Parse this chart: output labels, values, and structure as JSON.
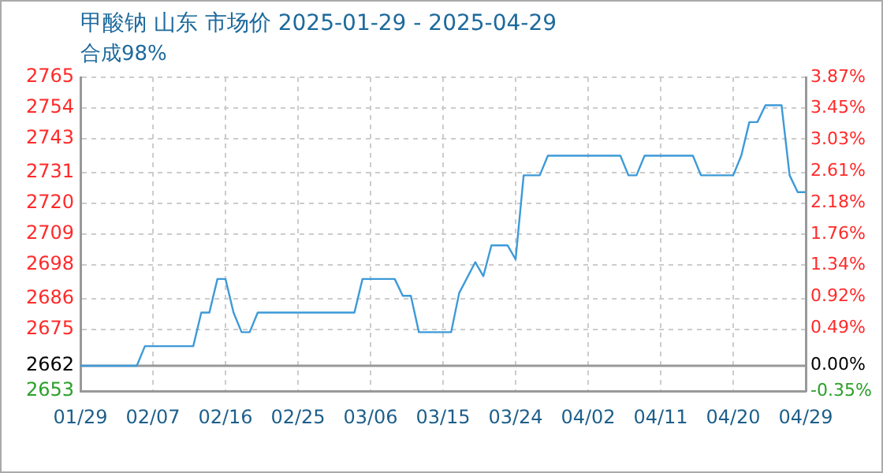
{
  "chart_data": {
    "type": "line",
    "title": "甲酸钠 山东 市场价 2025-01-29 - 2025-04-29",
    "subtitle": "合成98%",
    "x": [
      "2025-01-29",
      "2025-02-05",
      "2025-02-06",
      "2025-02-12",
      "2025-02-13",
      "2025-02-14",
      "2025-02-15",
      "2025-02-16",
      "2025-02-17",
      "2025-02-18",
      "2025-02-19",
      "2025-02-20",
      "2025-03-04",
      "2025-03-05",
      "2025-03-09",
      "2025-03-10",
      "2025-03-11",
      "2025-03-12",
      "2025-03-16",
      "2025-03-17",
      "2025-03-19",
      "2025-03-20",
      "2025-03-21",
      "2025-03-23",
      "2025-03-24",
      "2025-03-25",
      "2025-03-27",
      "2025-03-28",
      "2025-04-06",
      "2025-04-07",
      "2025-04-08",
      "2025-04-09",
      "2025-04-15",
      "2025-04-16",
      "2025-04-20",
      "2025-04-21",
      "2025-04-22",
      "2025-04-23",
      "2025-04-24",
      "2025-04-26",
      "2025-04-27",
      "2025-04-28",
      "2025-04-29"
    ],
    "series": [
      {
        "color": "#3d9ad8",
        "values": [
          2662,
          2662,
          2669,
          2669,
          2681,
          2681,
          2693,
          2693,
          2681,
          2674,
          2674,
          2681,
          2681,
          2693,
          2693,
          2687,
          2687,
          2674,
          2674,
          2688,
          2699,
          2694,
          2705,
          2705,
          2700,
          2730,
          2730,
          2737,
          2737,
          2730,
          2730,
          2737,
          2737,
          2730,
          2730,
          2737,
          2749,
          2749,
          2755,
          2755,
          2730,
          2724,
          2724
        ]
      }
    ],
    "xlim": [
      "2025-01-29",
      "2025-04-29"
    ],
    "xticks": [
      {
        "value": "2025-01-29",
        "label": "01/29"
      },
      {
        "value": "2025-02-07",
        "label": "02/07"
      },
      {
        "value": "2025-02-16",
        "label": "02/16"
      },
      {
        "value": "2025-02-25",
        "label": "02/25"
      },
      {
        "value": "2025-03-06",
        "label": "03/06"
      },
      {
        "value": "2025-03-15",
        "label": "03/15"
      },
      {
        "value": "2025-03-24",
        "label": "03/24"
      },
      {
        "value": "2025-04-02",
        "label": "04/02"
      },
      {
        "value": "2025-04-11",
        "label": "04/11"
      },
      {
        "value": "2025-04-20",
        "label": "04/20"
      },
      {
        "value": "2025-04-29",
        "label": "04/29"
      }
    ],
    "ylim": [
      2653,
      2765
    ],
    "yticks": [
      2653,
      2662,
      2675,
      2686,
      2698,
      2709,
      2720,
      2731,
      2743,
      2754,
      2765
    ],
    "y2lim": [
      -0.35,
      3.87
    ],
    "y2ticks": [
      {
        "value": -0.35,
        "label": "-0.35%"
      },
      {
        "value": 0,
        "label": "0.00%"
      },
      {
        "value": 0.49,
        "label": "0.49%"
      },
      {
        "value": 0.92,
        "label": "0.92%"
      },
      {
        "value": 1.34,
        "label": "1.34%"
      },
      {
        "value": 1.76,
        "label": "1.76%"
      },
      {
        "value": 2.18,
        "label": "2.18%"
      },
      {
        "value": 2.61,
        "label": "2.61%"
      },
      {
        "value": 3.03,
        "label": "3.03%"
      },
      {
        "value": 3.45,
        "label": "3.45%"
      },
      {
        "value": 3.87,
        "label": "3.87%"
      }
    ],
    "ref_lines": [
      {
        "axis": "y",
        "value": 2662,
        "color": "#999999"
      }
    ],
    "grid": true,
    "legend": false,
    "marker": "none",
    "line_style": "solid"
  }
}
